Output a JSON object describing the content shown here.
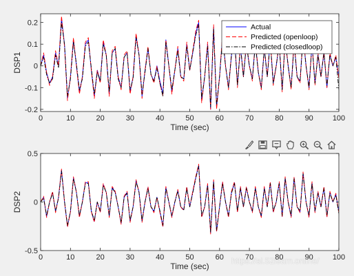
{
  "chart_data": [
    {
      "type": "line",
      "ylabel": "DSP1",
      "xlabel": "Time (sec)",
      "xlim": [
        0,
        100
      ],
      "ylim": [
        -0.21,
        0.24
      ],
      "xticks": [
        "0",
        "10",
        "20",
        "30",
        "40",
        "50",
        "60",
        "70",
        "80",
        "90",
        "100"
      ],
      "yticks": [
        "-0.2",
        "-0.1",
        "0",
        "0.1",
        "0.2"
      ],
      "ytick_values": [
        -0.2,
        -0.1,
        0,
        0.1,
        0.2
      ],
      "grid": false,
      "legend": {
        "placement": "top-right",
        "entries": [
          "Actual",
          "Predicted (openloop)",
          "Predicted (closedloop)"
        ]
      },
      "x": [
        0,
        1,
        2,
        3,
        4,
        5,
        6,
        7,
        8,
        9,
        10,
        11,
        12,
        13,
        14,
        15,
        16,
        17,
        18,
        19,
        20,
        21,
        22,
        23,
        24,
        25,
        26,
        27,
        28,
        29,
        30,
        31,
        32,
        33,
        34,
        35,
        36,
        37,
        38,
        39,
        40,
        41,
        42,
        43,
        44,
        45,
        46,
        47,
        48,
        49,
        50,
        51,
        52,
        53,
        54,
        55,
        56,
        57,
        58,
        59,
        60,
        61,
        62,
        63,
        64,
        65,
        66,
        67,
        68,
        69,
        70,
        71,
        72,
        73,
        74,
        75,
        76,
        77,
        78,
        79,
        80,
        81,
        82,
        83,
        84,
        85,
        86,
        87,
        88,
        89,
        90,
        91,
        92,
        93,
        94,
        95,
        96,
        97,
        98,
        99,
        100
      ],
      "series": [
        {
          "name": "Actual",
          "color": "#0000ff",
          "dash": "solid",
          "values": [
            0.0,
            0.05,
            -0.03,
            -0.08,
            -0.05,
            0.06,
            0.0,
            0.22,
            0.1,
            -0.15,
            -0.05,
            0.12,
            0.0,
            -0.12,
            -0.05,
            0.1,
            0.12,
            -0.02,
            -0.14,
            -0.02,
            -0.07,
            0.11,
            0.05,
            -0.13,
            0.06,
            0.08,
            -0.05,
            -0.1,
            0.04,
            0.06,
            -0.12,
            -0.05,
            0.14,
            0.05,
            -0.14,
            -0.02,
            0.08,
            -0.04,
            -0.07,
            0.0,
            -0.07,
            -0.13,
            0.12,
            0.0,
            -0.12,
            -0.02,
            0.08,
            -0.05,
            -0.06,
            0.1,
            -0.02,
            0.06,
            0.15,
            0.2,
            -0.16,
            -0.05,
            0.1,
            -0.2,
            0.18,
            -0.19,
            -0.05,
            0.14,
            0.0,
            -0.1,
            0.05,
            0.14,
            -0.09,
            0.09,
            -0.05,
            0.1,
            0.0,
            -0.06,
            0.11,
            -0.03,
            -0.1,
            0.08,
            -0.05,
            0.12,
            -0.08,
            0.0,
            0.1,
            -0.11,
            0.12,
            0.0,
            -0.1,
            0.11,
            -0.05,
            -0.07,
            0.14,
            0.0,
            -0.1,
            0.1,
            -0.08,
            0.05,
            -0.05,
            0.06,
            -0.1,
            0.05,
            0.0,
            0.04,
            -0.05
          ]
        },
        {
          "name": "Predicted (openloop)",
          "color": "#ff0000",
          "dash": "dashed",
          "values": [
            0.0,
            0.06,
            -0.03,
            -0.09,
            -0.05,
            0.07,
            0.0,
            0.23,
            0.09,
            -0.16,
            -0.05,
            0.13,
            0.0,
            -0.13,
            -0.05,
            0.11,
            0.13,
            -0.02,
            -0.15,
            -0.02,
            -0.08,
            0.12,
            0.05,
            -0.14,
            0.07,
            0.09,
            -0.05,
            -0.11,
            0.05,
            0.07,
            -0.13,
            -0.05,
            0.15,
            0.05,
            -0.15,
            -0.02,
            0.09,
            -0.04,
            -0.08,
            0.0,
            -0.08,
            -0.14,
            0.12,
            0.0,
            -0.13,
            -0.02,
            0.09,
            -0.05,
            -0.07,
            0.11,
            -0.02,
            0.07,
            0.16,
            0.21,
            -0.17,
            -0.05,
            0.11,
            -0.2,
            0.19,
            -0.2,
            -0.05,
            0.15,
            0.0,
            -0.11,
            0.06,
            0.15,
            -0.1,
            0.1,
            -0.05,
            0.11,
            0.0,
            -0.07,
            0.12,
            -0.03,
            -0.11,
            0.09,
            -0.05,
            0.13,
            -0.09,
            0.0,
            0.11,
            -0.12,
            0.13,
            0.0,
            -0.11,
            0.12,
            -0.05,
            -0.08,
            0.15,
            0.0,
            -0.11,
            0.11,
            -0.09,
            0.06,
            -0.05,
            0.07,
            -0.1,
            0.06,
            0.0,
            0.05,
            -0.06
          ]
        },
        {
          "name": "Predicted (closedloop)",
          "color": "#000000",
          "dash": "dashdot",
          "values": [
            0.0,
            0.04,
            -0.04,
            -0.08,
            -0.06,
            0.05,
            -0.01,
            0.2,
            0.1,
            -0.14,
            -0.06,
            0.11,
            0.01,
            -0.11,
            -0.06,
            0.09,
            0.11,
            -0.01,
            -0.13,
            -0.03,
            -0.07,
            0.1,
            0.05,
            -0.12,
            0.06,
            0.08,
            -0.06,
            -0.1,
            0.04,
            0.06,
            -0.11,
            -0.06,
            0.13,
            0.05,
            -0.13,
            -0.03,
            0.08,
            -0.04,
            -0.07,
            -0.01,
            -0.08,
            -0.14,
            0.11,
            0.0,
            -0.11,
            -0.02,
            0.07,
            -0.05,
            -0.06,
            0.09,
            -0.02,
            0.06,
            0.14,
            0.19,
            -0.15,
            -0.05,
            0.09,
            -0.19,
            0.17,
            -0.18,
            -0.05,
            0.13,
            0.0,
            -0.1,
            0.05,
            0.13,
            -0.09,
            0.09,
            -0.05,
            0.1,
            0.0,
            -0.06,
            0.1,
            -0.03,
            -0.1,
            0.08,
            -0.05,
            0.11,
            -0.08,
            0.0,
            0.1,
            -0.11,
            0.12,
            0.0,
            -0.1,
            0.1,
            -0.05,
            -0.07,
            0.13,
            0.0,
            -0.1,
            0.1,
            -0.08,
            0.05,
            -0.05,
            0.06,
            -0.09,
            0.05,
            0.0,
            0.04,
            -0.11
          ]
        }
      ]
    },
    {
      "type": "line",
      "ylabel": "DSP2",
      "xlabel": "Time (sec)",
      "xlim": [
        0,
        100
      ],
      "ylim": [
        -0.5,
        0.5
      ],
      "xticks": [
        "0",
        "10",
        "20",
        "30",
        "40",
        "50",
        "60",
        "70",
        "80",
        "90",
        "100"
      ],
      "yticks": [
        "-0.5",
        "0",
        "0.5"
      ],
      "ytick_values": [
        -0.5,
        0,
        0.5
      ],
      "grid": false,
      "x": [
        0,
        1,
        2,
        3,
        4,
        5,
        6,
        7,
        8,
        9,
        10,
        11,
        12,
        13,
        14,
        15,
        16,
        17,
        18,
        19,
        20,
        21,
        22,
        23,
        24,
        25,
        26,
        27,
        28,
        29,
        30,
        31,
        32,
        33,
        34,
        35,
        36,
        37,
        38,
        39,
        40,
        41,
        42,
        43,
        44,
        45,
        46,
        47,
        48,
        49,
        50,
        51,
        52,
        53,
        54,
        55,
        56,
        57,
        58,
        59,
        60,
        61,
        62,
        63,
        64,
        65,
        66,
        67,
        68,
        69,
        70,
        71,
        72,
        73,
        74,
        75,
        76,
        77,
        78,
        79,
        80,
        81,
        82,
        83,
        84,
        85,
        86,
        87,
        88,
        89,
        90,
        91,
        92,
        93,
        94,
        95,
        96,
        97,
        98,
        99,
        100
      ],
      "series": [
        {
          "name": "Actual",
          "color": "#0000ff",
          "dash": "solid",
          "values": [
            0.0,
            0.05,
            -0.15,
            0.0,
            0.1,
            -0.1,
            0.05,
            0.33,
            0.0,
            -0.25,
            -0.1,
            0.25,
            0.1,
            -0.15,
            0.0,
            0.2,
            0.2,
            -0.1,
            -0.2,
            0.0,
            -0.1,
            0.18,
            0.1,
            -0.15,
            0.15,
            0.1,
            -0.05,
            -0.22,
            0.05,
            0.1,
            -0.2,
            -0.05,
            0.22,
            0.1,
            -0.2,
            0.0,
            0.15,
            -0.05,
            -0.1,
            0.05,
            -0.1,
            -0.25,
            0.15,
            0.0,
            -0.15,
            0.0,
            0.12,
            -0.05,
            -0.08,
            0.15,
            -0.05,
            0.1,
            0.25,
            0.38,
            -0.15,
            -0.05,
            0.18,
            -0.32,
            0.22,
            -0.3,
            -0.05,
            0.2,
            0.0,
            -0.15,
            0.1,
            0.2,
            -0.1,
            0.15,
            -0.05,
            0.15,
            0.0,
            -0.1,
            0.15,
            -0.05,
            -0.15,
            0.15,
            -0.05,
            0.2,
            -0.1,
            0.0,
            0.2,
            -0.15,
            0.25,
            0.0,
            -0.15,
            0.25,
            -0.05,
            -0.1,
            0.3,
            0.0,
            -0.15,
            0.2,
            -0.1,
            0.1,
            -0.05,
            0.15,
            -0.15,
            0.1,
            0.0,
            0.08,
            -0.1
          ]
        },
        {
          "name": "Predicted (openloop)",
          "color": "#ff0000",
          "dash": "dashed",
          "values": [
            0.0,
            0.06,
            -0.16,
            0.0,
            0.11,
            -0.11,
            0.05,
            0.34,
            0.0,
            -0.26,
            -0.1,
            0.26,
            0.1,
            -0.16,
            0.0,
            0.21,
            0.21,
            -0.1,
            -0.21,
            0.0,
            -0.11,
            0.19,
            0.1,
            -0.16,
            0.16,
            0.11,
            -0.05,
            -0.23,
            0.06,
            0.11,
            -0.21,
            -0.05,
            0.23,
            0.1,
            -0.21,
            0.0,
            0.16,
            -0.05,
            -0.11,
            0.05,
            -0.11,
            -0.26,
            0.16,
            0.0,
            -0.16,
            0.0,
            0.13,
            -0.05,
            -0.09,
            0.16,
            -0.05,
            0.11,
            0.26,
            0.39,
            -0.16,
            -0.05,
            0.19,
            -0.33,
            0.23,
            -0.31,
            -0.05,
            0.21,
            0.0,
            -0.16,
            0.11,
            0.21,
            -0.11,
            0.16,
            -0.05,
            0.16,
            0.0,
            -0.11,
            0.16,
            -0.05,
            -0.16,
            0.16,
            -0.05,
            0.21,
            -0.11,
            0.0,
            0.21,
            -0.16,
            0.26,
            0.0,
            -0.16,
            0.26,
            -0.05,
            -0.11,
            0.31,
            0.0,
            -0.16,
            0.21,
            -0.11,
            0.11,
            -0.05,
            0.16,
            -0.16,
            0.11,
            0.0,
            0.09,
            -0.11
          ]
        },
        {
          "name": "Predicted (closedloop)",
          "color": "#000000",
          "dash": "dashdot",
          "values": [
            0.0,
            0.04,
            -0.14,
            0.0,
            0.09,
            -0.09,
            0.04,
            0.32,
            0.01,
            -0.24,
            -0.1,
            0.24,
            0.1,
            -0.14,
            0.0,
            0.19,
            0.19,
            -0.09,
            -0.19,
            0.0,
            -0.09,
            0.17,
            0.1,
            -0.14,
            0.14,
            0.1,
            -0.05,
            -0.21,
            0.05,
            0.09,
            -0.19,
            -0.05,
            0.21,
            0.1,
            -0.19,
            0.0,
            0.14,
            -0.05,
            -0.09,
            0.05,
            -0.09,
            -0.24,
            0.14,
            0.0,
            -0.14,
            0.0,
            0.11,
            -0.05,
            -0.08,
            0.14,
            -0.05,
            0.09,
            0.24,
            0.37,
            -0.14,
            -0.05,
            0.17,
            -0.31,
            0.21,
            -0.29,
            -0.05,
            0.19,
            0.0,
            -0.14,
            0.09,
            0.19,
            -0.09,
            0.14,
            -0.05,
            0.14,
            0.0,
            -0.09,
            0.14,
            -0.05,
            -0.14,
            0.14,
            -0.05,
            0.19,
            -0.09,
            0.0,
            0.19,
            -0.14,
            0.24,
            0.0,
            -0.14,
            0.24,
            -0.05,
            -0.09,
            0.29,
            0.0,
            -0.14,
            0.19,
            -0.09,
            0.09,
            -0.05,
            0.14,
            -0.14,
            0.09,
            0.0,
            0.07,
            -0.12
          ]
        }
      ]
    }
  ],
  "toolbar": {
    "icons": [
      "brush-icon",
      "save-icon",
      "datatip-icon",
      "pan-icon",
      "zoom-in-icon",
      "zoom-out-icon",
      "home-icon"
    ]
  },
  "watermark": "https://ai.52learn.online/"
}
